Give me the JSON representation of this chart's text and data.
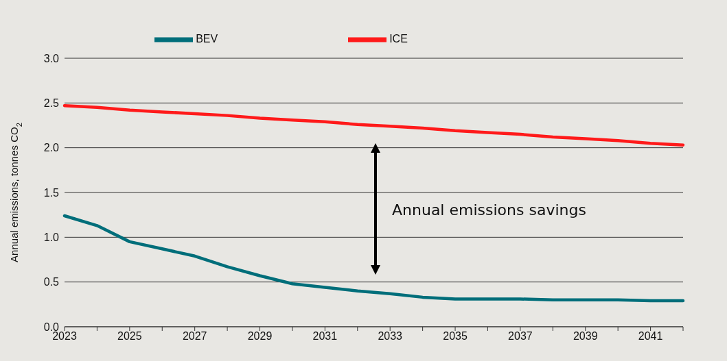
{
  "chart_data": {
    "type": "line",
    "ylabel": "Annual emissions, tonnes CO$_{2}$",
    "categories": [
      "2023",
      null,
      "2025",
      null,
      "2027",
      null,
      "2029",
      null,
      "2031",
      null,
      "2033",
      null,
      "2035",
      null,
      "2037",
      null,
      "2039",
      null,
      "2041",
      null
    ],
    "series": [
      {
        "name": "BEV",
        "color": "#006e7a",
        "values": [
          1.24,
          1.13,
          0.95,
          0.87,
          0.79,
          0.67,
          0.57,
          0.48,
          0.44,
          0.4,
          0.37,
          0.33,
          0.31,
          0.31,
          0.31,
          0.3,
          0.3,
          0.3,
          0.29,
          0.29
        ]
      },
      {
        "name": "ICE",
        "color": "#ff1a1a",
        "values": [
          2.47,
          2.45,
          2.42,
          2.4,
          2.38,
          2.36,
          2.33,
          2.31,
          2.29,
          2.26,
          2.24,
          2.22,
          2.19,
          2.17,
          2.15,
          2.12,
          2.1,
          2.08,
          2.05,
          2.03
        ]
      }
    ],
    "ylim": [
      0,
      3
    ],
    "yticks": [
      {
        "value": 0,
        "label": "0.0"
      },
      0.5,
      {
        "value": 1,
        "label": "1.0"
      },
      1.5,
      {
        "value": 2,
        "label": "2.0"
      },
      2.5,
      {
        "value": 3,
        "label": "3.0"
      }
    ],
    "grid": "y",
    "legend": "top",
    "marker": "none",
    "line_style": "solid",
    "annotations": [
      "Annual emissions savings"
    ]
  }
}
